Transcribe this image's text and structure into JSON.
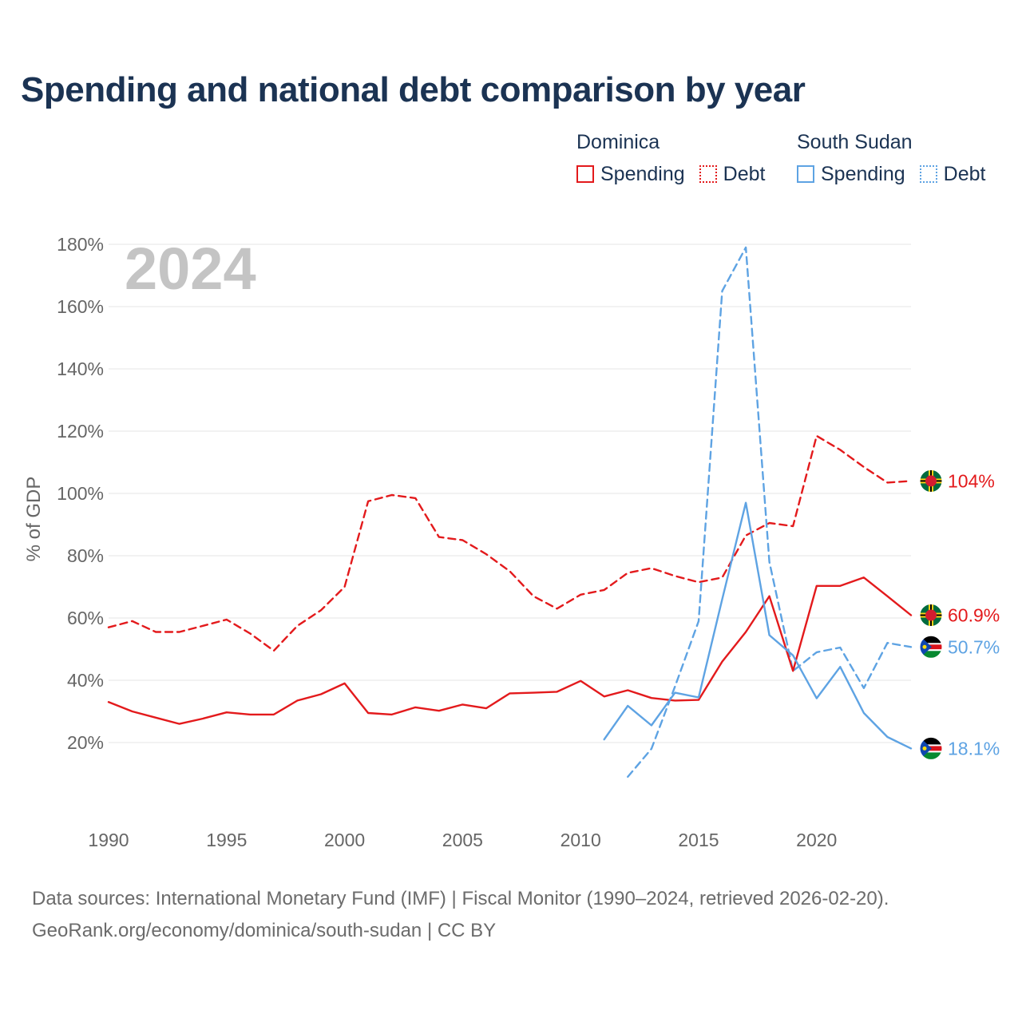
{
  "title": "Spending and national debt comparison by year",
  "legend": {
    "groups": [
      {
        "name": "Dominica",
        "items": [
          "Spending",
          "Debt"
        ]
      },
      {
        "name": "South Sudan",
        "items": [
          "Spending",
          "Debt"
        ]
      }
    ]
  },
  "footer": {
    "line1": "Data sources: International Monetary Fund (IMF) | Fiscal Monitor (1990–2024, retrieved 2026-02-20).",
    "line2": "GeoRank.org/economy/dominica/south-sudan | CC BY"
  },
  "colors": {
    "dominica": "#e31a1c",
    "south_sudan": "#5ea3e3",
    "grid": "#e6e6e6",
    "axis_text": "#666666",
    "year_watermark": "#c4c4c4"
  },
  "chart_data": {
    "type": "line",
    "year_label": "2024",
    "ylabel": "% of GDP",
    "xlim": [
      1990,
      2024
    ],
    "ylim": [
      0,
      180
    ],
    "x_ticks": [
      1990,
      1995,
      2000,
      2005,
      2010,
      2015,
      2020
    ],
    "x_tick_labels": [
      "1990",
      "1995",
      "2000",
      "2005",
      "2010",
      "2015",
      "2020"
    ],
    "y_ticks": [
      20,
      40,
      60,
      80,
      100,
      120,
      140,
      160,
      180
    ],
    "y_tick_labels": [
      "20%",
      "40%",
      "60%",
      "80%",
      "100%",
      "120%",
      "140%",
      "160%",
      "180%"
    ],
    "series": [
      {
        "name": "Dominica Debt",
        "country": "dominica",
        "style": "dashed",
        "end_label": "104%",
        "flag": "dominica-flag",
        "x": [
          1990,
          1991,
          1992,
          1993,
          1994,
          1995,
          1996,
          1997,
          1998,
          1999,
          2000,
          2001,
          2002,
          2003,
          2004,
          2005,
          2006,
          2007,
          2008,
          2009,
          2010,
          2011,
          2012,
          2013,
          2014,
          2015,
          2016,
          2017,
          2018,
          2019,
          2020,
          2021,
          2022,
          2023,
          2024
        ],
        "values": [
          57,
          59,
          55.5,
          55.5,
          57.5,
          59.5,
          55,
          49.5,
          57.5,
          62.5,
          70,
          97.5,
          99.5,
          98.5,
          86,
          85,
          80.5,
          75,
          67,
          63,
          67.5,
          69,
          74.5,
          76,
          73.5,
          71.5,
          73,
          86.5,
          90.5,
          89.5,
          118.5,
          114,
          108.5,
          103.5,
          104
        ]
      },
      {
        "name": "Dominica Spending",
        "country": "dominica",
        "style": "solid",
        "end_label": "60.9%",
        "flag": "dominica-flag",
        "x": [
          1990,
          1991,
          1992,
          1993,
          1994,
          1995,
          1996,
          1997,
          1998,
          1999,
          2000,
          2001,
          2002,
          2003,
          2004,
          2005,
          2006,
          2007,
          2008,
          2009,
          2010,
          2011,
          2012,
          2013,
          2014,
          2015,
          2016,
          2017,
          2018,
          2019,
          2020,
          2021,
          2022,
          2023,
          2024
        ],
        "values": [
          33,
          30,
          28,
          26,
          27.7,
          29.7,
          29,
          29,
          33.5,
          35.5,
          39,
          29.5,
          29,
          31.3,
          30.2,
          32.2,
          31,
          35.8,
          36,
          36.3,
          39.8,
          34.8,
          36.8,
          34.3,
          33.5,
          33.7,
          46,
          55.5,
          67,
          43,
          70.3,
          70.3,
          73,
          67,
          60.9
        ]
      },
      {
        "name": "South Sudan Debt",
        "country": "south_sudan",
        "style": "dashed",
        "end_label": "50.7%",
        "flag": "south-sudan-flag",
        "x": [
          2012,
          2013,
          2014,
          2015,
          2016,
          2017,
          2018,
          2019,
          2020,
          2021,
          2022,
          2023,
          2024
        ],
        "values": [
          9,
          18,
          38,
          59,
          165,
          179,
          78,
          43,
          49,
          50.5,
          37.5,
          52,
          50.7
        ]
      },
      {
        "name": "South Sudan Spending",
        "country": "south_sudan",
        "style": "solid",
        "end_label": "18.1%",
        "flag": "south-sudan-flag",
        "x": [
          2011,
          2012,
          2013,
          2014,
          2015,
          2016,
          2017,
          2018,
          2019,
          2020,
          2021,
          2022,
          2023,
          2024
        ],
        "values": [
          21,
          31.8,
          25.5,
          36,
          34.5,
          66,
          97,
          54.5,
          48,
          34.2,
          44.3,
          29.5,
          21.8,
          18.1
        ]
      }
    ]
  }
}
